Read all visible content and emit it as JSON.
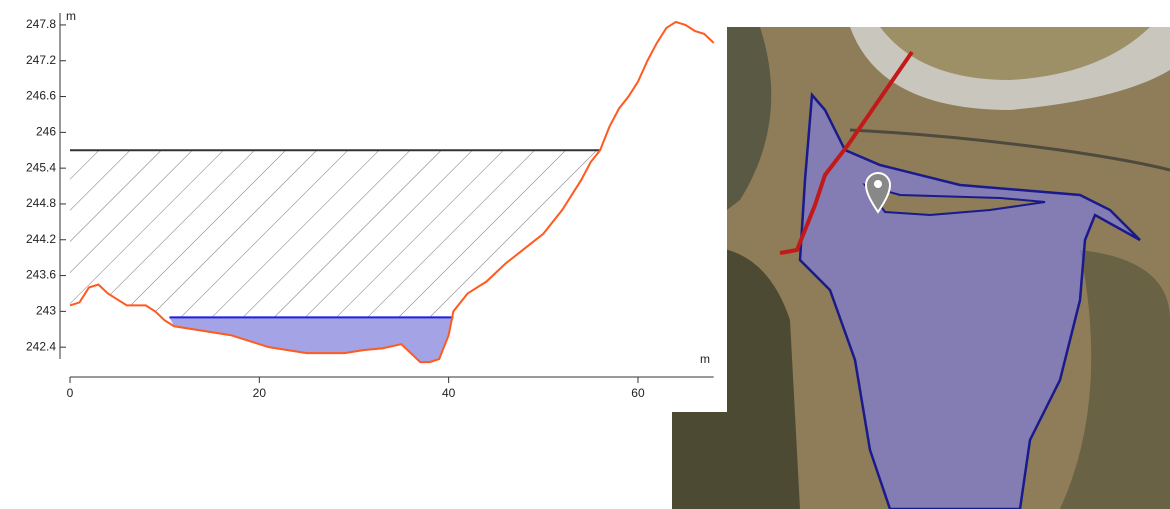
{
  "chart_data": {
    "type": "line",
    "y_label": "m",
    "x_label": "m",
    "x": [
      0,
      1,
      2,
      3,
      4,
      5,
      6,
      8,
      9,
      10,
      11,
      13,
      15,
      17,
      19,
      21,
      23,
      25,
      27,
      29,
      31,
      33,
      35,
      36,
      37,
      38,
      39,
      40,
      40.5,
      42,
      44,
      46,
      48,
      50,
      52,
      54,
      55,
      56,
      57,
      58,
      59,
      60,
      61,
      62,
      63,
      64,
      65,
      66,
      67,
      68
    ],
    "series": [
      {
        "color": "#ff5a1f",
        "values": [
          243.1,
          243.15,
          243.4,
          243.45,
          243.3,
          243.2,
          243.1,
          243.1,
          243.0,
          242.85,
          242.75,
          242.7,
          242.65,
          242.6,
          242.5,
          242.4,
          242.35,
          242.3,
          242.3,
          242.3,
          242.35,
          242.38,
          242.45,
          242.3,
          242.15,
          242.15,
          242.2,
          242.6,
          243.0,
          243.3,
          243.5,
          243.8,
          244.05,
          244.3,
          244.7,
          245.2,
          245.5,
          245.7,
          246.1,
          246.4,
          246.6,
          246.85,
          247.2,
          247.5,
          247.75,
          247.85,
          247.8,
          247.7,
          247.65,
          247.5
        ]
      }
    ],
    "levels": [
      {
        "value": 245.7,
        "x": [
          0,
          56
        ],
        "color": "#333333",
        "fill": "hatch"
      },
      {
        "value": 242.9,
        "x": [
          10.5,
          40.5
        ],
        "color": "#1f1fe0",
        "fill": "#a3a3e6"
      }
    ],
    "xlim": [
      0,
      68
    ],
    "xticks": [
      0,
      20,
      40,
      60
    ],
    "ylim": [
      241.9,
      248.0
    ],
    "yticks": [
      242.4,
      243,
      243.6,
      244.2,
      244.8,
      245.4,
      246,
      246.6,
      247.2,
      247.8
    ]
  }
}
